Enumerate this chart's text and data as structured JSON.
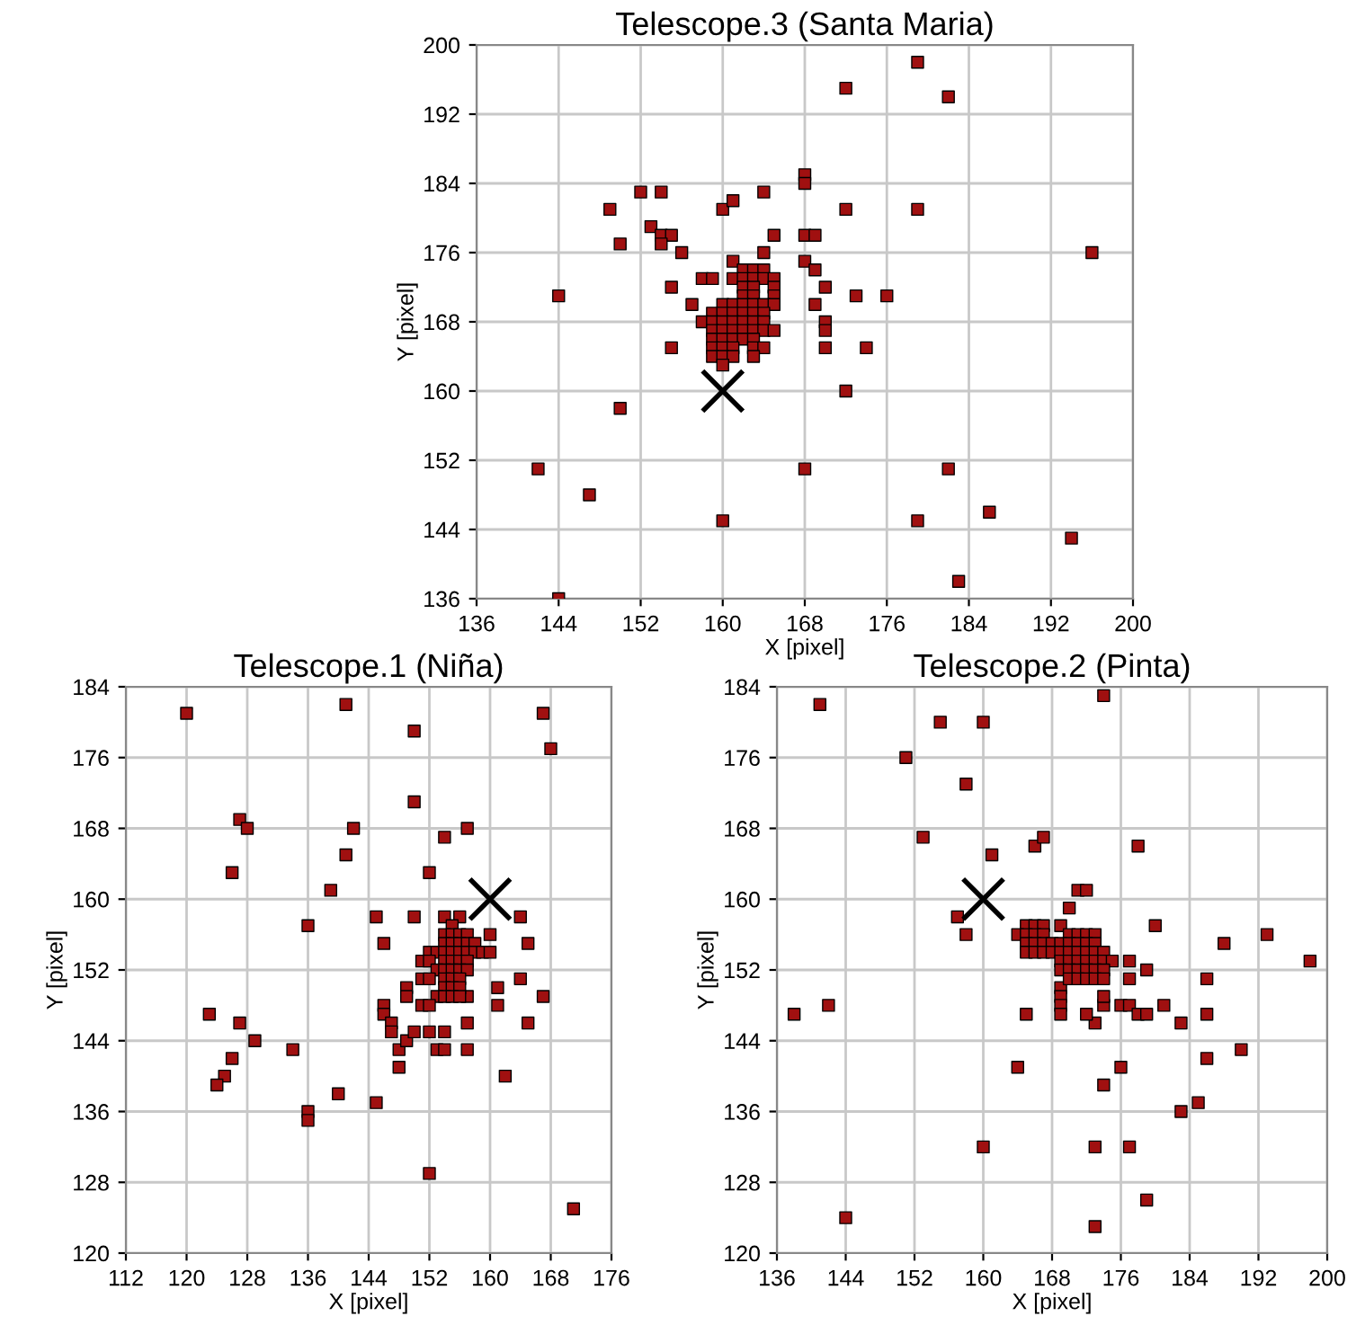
{
  "chart_data": [
    {
      "type": "scatter",
      "title": "Telescope.3 (Santa Maria)",
      "xlabel": "X [pixel]",
      "ylabel": "Y [pixel]",
      "xlim": [
        136,
        200
      ],
      "ylim": [
        136,
        200
      ],
      "xticks": [
        136,
        144,
        152,
        160,
        168,
        176,
        184,
        192,
        200
      ],
      "yticks": [
        136,
        144,
        152,
        160,
        168,
        176,
        184,
        192,
        200
      ],
      "grid": true,
      "series": [
        {
          "color": "#a01010",
          "marker": "square",
          "x": [
            179,
            172,
            182,
            168,
            168,
            152,
            154,
            164,
            149,
            160,
            161,
            172,
            179,
            153,
            154,
            155,
            154,
            150,
            156,
            164,
            165,
            168,
            169,
            168,
            169,
            161,
            162,
            196,
            144,
            155,
            158,
            159,
            157,
            170,
            169,
            173,
            176,
            155,
            170,
            170,
            170,
            174,
            172,
            150,
            142,
            147,
            168,
            182,
            186,
            179,
            160,
            194,
            183,
            144,
            163,
            164,
            161,
            162,
            163,
            164,
            165,
            162,
            163,
            165,
            162,
            163,
            165,
            160,
            161,
            162,
            163,
            164,
            165,
            159,
            160,
            161,
            162,
            163,
            164,
            158,
            159,
            160,
            161,
            162,
            163,
            164,
            159,
            160,
            161,
            162,
            163,
            164,
            165,
            159,
            160,
            161,
            162,
            163,
            159,
            160,
            161,
            163,
            164,
            159,
            160,
            161,
            163,
            160
          ],
          "values": [
            198,
            195,
            194,
            185,
            184,
            183,
            183,
            183,
            181,
            181,
            182,
            181,
            181,
            179,
            178,
            178,
            177,
            177,
            176,
            176,
            178,
            178,
            178,
            175,
            174,
            175,
            174,
            176,
            171,
            172,
            173,
            173,
            170,
            172,
            170,
            171,
            171,
            165,
            168,
            167,
            165,
            165,
            160,
            158,
            151,
            148,
            151,
            151,
            146,
            145,
            145,
            143,
            138,
            136,
            174,
            174,
            173,
            173,
            173,
            173,
            173,
            172,
            172,
            172,
            171,
            171,
            171,
            170,
            170,
            170,
            170,
            170,
            170,
            169,
            169,
            169,
            169,
            169,
            169,
            168,
            168,
            168,
            168,
            168,
            168,
            168,
            167,
            167,
            167,
            167,
            167,
            167,
            167,
            166,
            166,
            166,
            166,
            166,
            165,
            165,
            165,
            165,
            165,
            164,
            164,
            164,
            164,
            163
          ]
        },
        {
          "color": "#000000",
          "marker": "cross",
          "x": [
            160
          ],
          "values": [
            160
          ]
        }
      ]
    },
    {
      "type": "scatter",
      "title": "Telescope.1 (Niña)",
      "xlabel": "X [pixel]",
      "ylabel": "Y [pixel]",
      "xlim": [
        112,
        176
      ],
      "ylim": [
        120,
        184
      ],
      "xticks": [
        112,
        120,
        128,
        136,
        144,
        152,
        160,
        168,
        176
      ],
      "yticks": [
        120,
        128,
        136,
        144,
        152,
        160,
        168,
        176,
        184
      ],
      "grid": true,
      "series": [
        {
          "color": "#a01010",
          "marker": "square",
          "x": [
            120,
            141,
            150,
            167,
            168,
            127,
            128,
            142,
            150,
            154,
            157,
            126,
            141,
            152,
            139,
            136,
            145,
            150,
            154,
            156,
            164,
            146,
            160,
            165,
            123,
            127,
            129,
            134,
            126,
            125,
            124,
            140,
            136,
            136,
            145,
            152,
            171,
            149,
            149,
            146,
            146,
            147,
            147,
            148,
            149,
            148,
            150,
            152,
            153,
            154,
            154,
            157,
            157,
            162,
            161,
            161,
            164,
            167,
            165,
            157,
            155,
            154,
            155,
            156,
            157,
            154,
            155,
            156,
            157,
            158,
            152,
            153,
            154,
            155,
            156,
            157,
            158,
            159,
            160,
            151,
            152,
            154,
            155,
            156,
            157,
            153,
            154,
            155,
            156,
            157,
            151,
            152,
            154,
            155,
            156,
            154,
            155,
            156,
            153,
            154,
            155,
            156,
            151,
            152
          ],
          "values": [
            181,
            182,
            179,
            181,
            177,
            169,
            168,
            168,
            171,
            167,
            168,
            163,
            165,
            163,
            161,
            157,
            158,
            158,
            158,
            158,
            158,
            155,
            156,
            155,
            147,
            146,
            144,
            143,
            142,
            140,
            139,
            138,
            136,
            135,
            137,
            129,
            125,
            150,
            149,
            148,
            147,
            146,
            145,
            143,
            144,
            141,
            145,
            145,
            143,
            145,
            143,
            146,
            143,
            140,
            150,
            148,
            151,
            149,
            146,
            149,
            157,
            156,
            156,
            156,
            156,
            155,
            155,
            155,
            155,
            155,
            154,
            154,
            154,
            154,
            154,
            154,
            154,
            154,
            154,
            153,
            153,
            153,
            153,
            153,
            153,
            152,
            152,
            152,
            152,
            152,
            151,
            151,
            151,
            151,
            151,
            150,
            150,
            150,
            149,
            149,
            149,
            149,
            148,
            148
          ]
        },
        {
          "color": "#000000",
          "marker": "cross",
          "x": [
            160
          ],
          "values": [
            160
          ]
        }
      ]
    },
    {
      "type": "scatter",
      "title": "Telescope.2 (Pinta)",
      "xlabel": "X [pixel]",
      "ylabel": "Y [pixel]",
      "xlim": [
        136,
        200
      ],
      "ylim": [
        120,
        184
      ],
      "xticks": [
        136,
        144,
        152,
        160,
        168,
        176,
        184,
        192,
        200
      ],
      "yticks": [
        120,
        128,
        136,
        144,
        152,
        160,
        168,
        176,
        184
      ],
      "grid": true,
      "series": [
        {
          "color": "#a01010",
          "marker": "square",
          "x": [
            141,
            155,
            160,
            174,
            151,
            158,
            153,
            161,
            166,
            167,
            178,
            157,
            158,
            170,
            171,
            172,
            180,
            188,
            193,
            198,
            138,
            142,
            165,
            164,
            176,
            174,
            177,
            177,
            179,
            176,
            177,
            178,
            179,
            181,
            183,
            186,
            186,
            186,
            190,
            183,
            185,
            160,
            173,
            177,
            179,
            173,
            144,
            173,
            172,
            174,
            174,
            169,
            169,
            169,
            169,
            165,
            166,
            167,
            169,
            164,
            165,
            166,
            167,
            170,
            171,
            172,
            173,
            165,
            166,
            167,
            168,
            169,
            170,
            171,
            172,
            173,
            165,
            166,
            167,
            168,
            169,
            170,
            171,
            172,
            173,
            174,
            169,
            170,
            171,
            172,
            173,
            174,
            175,
            169,
            170,
            171,
            172,
            173,
            174,
            170,
            171,
            172,
            173,
            174
          ],
          "values": [
            182,
            180,
            180,
            183,
            176,
            173,
            167,
            165,
            166,
            167,
            166,
            158,
            156,
            159,
            161,
            161,
            157,
            155,
            156,
            153,
            147,
            148,
            147,
            141,
            141,
            139,
            153,
            151,
            152,
            148,
            148,
            147,
            147,
            148,
            146,
            151,
            147,
            142,
            143,
            136,
            137,
            132,
            132,
            132,
            126,
            123,
            124,
            146,
            147,
            148,
            149,
            150,
            149,
            148,
            147,
            157,
            157,
            157,
            157,
            156,
            156,
            156,
            156,
            156,
            156,
            156,
            156,
            155,
            155,
            155,
            155,
            155,
            155,
            155,
            155,
            155,
            154,
            154,
            154,
            154,
            154,
            154,
            154,
            154,
            154,
            154,
            153,
            153,
            153,
            153,
            153,
            153,
            153,
            152,
            152,
            152,
            152,
            152,
            152,
            151,
            151,
            151,
            151,
            151
          ]
        },
        {
          "color": "#000000",
          "marker": "cross",
          "x": [
            160
          ],
          "values": [
            160
          ]
        }
      ]
    }
  ]
}
